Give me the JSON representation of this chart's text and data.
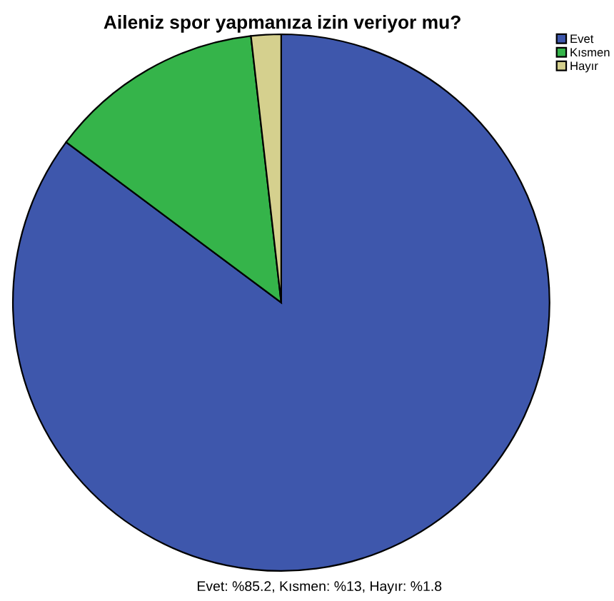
{
  "chart_data": {
    "type": "pie",
    "title": "Aileniz spor yapmanıza izin veriyor mu?",
    "categories": [
      "Evet",
      "Kısmen",
      "Hayır"
    ],
    "values": [
      85.2,
      13,
      1.8
    ],
    "colors": [
      "#3e57ac",
      "#35b44a",
      "#d5d08e"
    ],
    "legend": "top right",
    "annotations": [
      "Evet: %85.2, Kısmen: %13, Hayır: %1.8"
    ]
  }
}
